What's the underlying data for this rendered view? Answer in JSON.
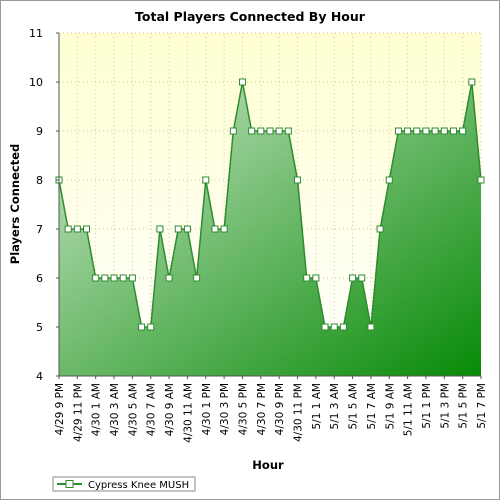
{
  "chart_data": {
    "type": "area",
    "title": "Total Players Connected By Hour",
    "xlabel": "Hour",
    "ylabel": "Players Connected",
    "ylim": [
      4,
      11
    ],
    "yticks": [
      4,
      5,
      6,
      7,
      8,
      9,
      10,
      11
    ],
    "grid": true,
    "legend_position": "bottom-left",
    "x": [
      "4/29 9 PM",
      "4/29 10 PM",
      "4/29 11 PM",
      "4/30 12 AM",
      "4/30 1 AM",
      "4/30 2 AM",
      "4/30 3 AM",
      "4/30 4 AM",
      "4/30 5 AM",
      "4/30 6 AM",
      "4/30 7 AM",
      "4/30 8 AM",
      "4/30 9 AM",
      "4/30 10 AM",
      "4/30 11 AM",
      "4/30 12 PM",
      "4/30 1 PM",
      "4/30 2 PM",
      "4/30 3 PM",
      "4/30 4 PM",
      "4/30 5 PM",
      "4/30 6 PM",
      "4/30 7 PM",
      "4/30 8 PM",
      "4/30 9 PM",
      "4/30 10 PM",
      "4/30 11 PM",
      "5/1 12 AM",
      "5/1 1 AM",
      "5/1 2 AM",
      "5/1 3 AM",
      "5/1 4 AM",
      "5/1 5 AM",
      "5/1 6 AM",
      "5/1 7 AM",
      "5/1 8 AM",
      "5/1 9 AM",
      "5/1 10 AM",
      "5/1 11 AM",
      "5/1 12 PM",
      "5/1 1 PM",
      "5/1 2 PM",
      "5/1 3 PM",
      "5/1 4 PM",
      "5/1 5 PM",
      "5/1 6 PM",
      "5/1 7 PM"
    ],
    "x_tick_labels": [
      "4/29 9 PM",
      "4/29 11 PM",
      "4/30 1 AM",
      "4/30 3 AM",
      "4/30 5 AM",
      "4/30 7 AM",
      "4/30 9 AM",
      "4/30 11 AM",
      "4/30 1 PM",
      "4/30 3 PM",
      "4/30 5 PM",
      "4/30 7 PM",
      "4/30 9 PM",
      "4/30 11 PM",
      "5/1 1 AM",
      "5/1 3 AM",
      "5/1 5 AM",
      "5/1 7 AM",
      "5/1 9 AM",
      "5/1 11 AM",
      "5/1 1 PM",
      "5/1 3 PM",
      "5/1 5 PM",
      "5/1 7 PM"
    ],
    "series": [
      {
        "name": "Cypress Knee MUSH",
        "values": [
          8,
          7,
          7,
          7,
          6,
          6,
          6,
          6,
          6,
          5,
          5,
          7,
          6,
          7,
          7,
          6,
          8,
          7,
          7,
          9,
          10,
          9,
          9,
          9,
          9,
          9,
          8,
          6,
          6,
          5,
          5,
          5,
          6,
          6,
          5,
          7,
          8,
          9,
          9,
          9,
          9,
          9,
          9,
          9,
          9,
          10,
          8
        ]
      }
    ],
    "colors": {
      "plot_background_top": "#ffffd2",
      "plot_background_bottom": "#ffffff",
      "line": "#2e8b2e",
      "fill_light": "#cfe8cc",
      "fill_dark": "#078a07",
      "grid": "#c9c9a8"
    }
  }
}
